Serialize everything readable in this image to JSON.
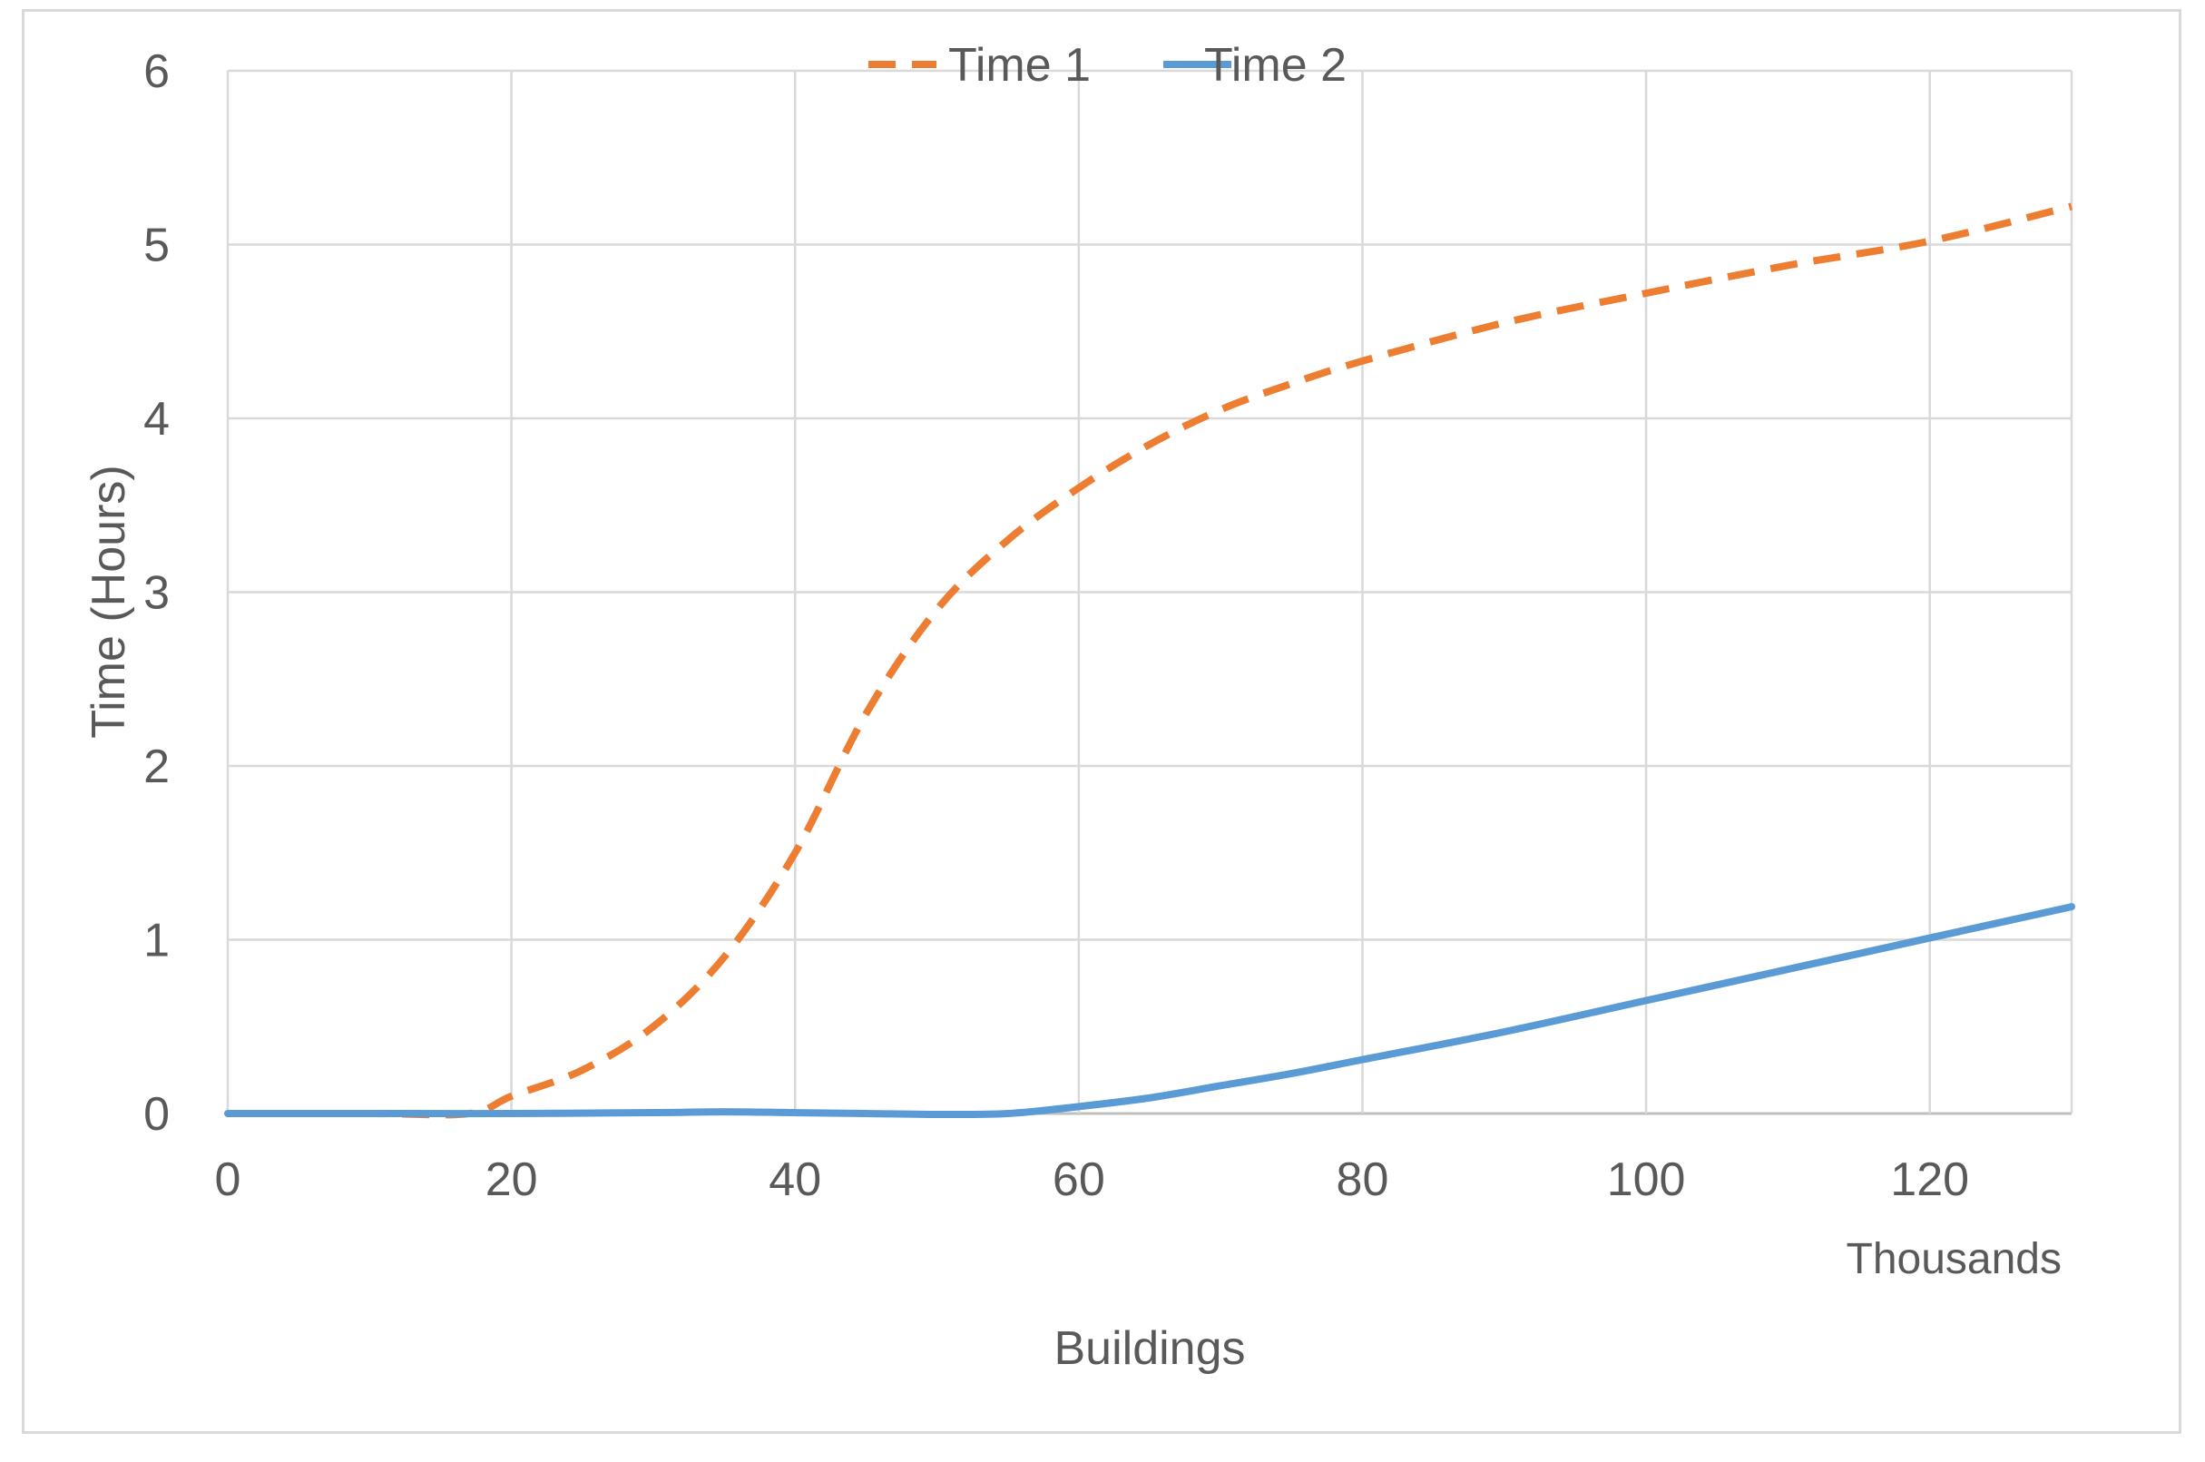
{
  "chart_data": {
    "type": "line",
    "title": "",
    "xlabel": "Buildings",
    "ylabel": "Time (Hours)",
    "x_unit_label": "Thousands",
    "xlim": [
      0,
      130
    ],
    "ylim": [
      0,
      6
    ],
    "x_ticks": [
      0,
      20,
      40,
      60,
      80,
      100,
      120
    ],
    "y_ticks": [
      0,
      1,
      2,
      3,
      4,
      5,
      6
    ],
    "grid": true,
    "legend_position": "top-center",
    "series": [
      {
        "name": "Time 1",
        "color": "#ED7D31",
        "style": "dashed",
        "x": [
          0,
          10,
          17,
          20,
          25,
          30,
          35,
          40,
          45,
          50,
          55,
          60,
          65,
          70,
          75,
          80,
          90,
          100,
          110,
          120,
          130
        ],
        "y": [
          0,
          0,
          0,
          0.1,
          0.25,
          0.5,
          0.9,
          1.5,
          2.3,
          2.9,
          3.3,
          3.6,
          3.85,
          4.05,
          4.2,
          4.33,
          4.55,
          4.72,
          4.88,
          5.02,
          5.22
        ]
      },
      {
        "name": "Time 2",
        "color": "#5B9BD5",
        "style": "solid",
        "x": [
          0,
          10,
          20,
          30,
          35,
          40,
          45,
          50,
          55,
          60,
          65,
          70,
          75,
          80,
          90,
          100,
          110,
          120,
          130
        ],
        "y": [
          0,
          0,
          0,
          0.005,
          0.01,
          0.005,
          0,
          -0.005,
          0,
          0.04,
          0.09,
          0.16,
          0.23,
          0.31,
          0.47,
          0.65,
          0.83,
          1.01,
          1.19
        ]
      }
    ]
  }
}
